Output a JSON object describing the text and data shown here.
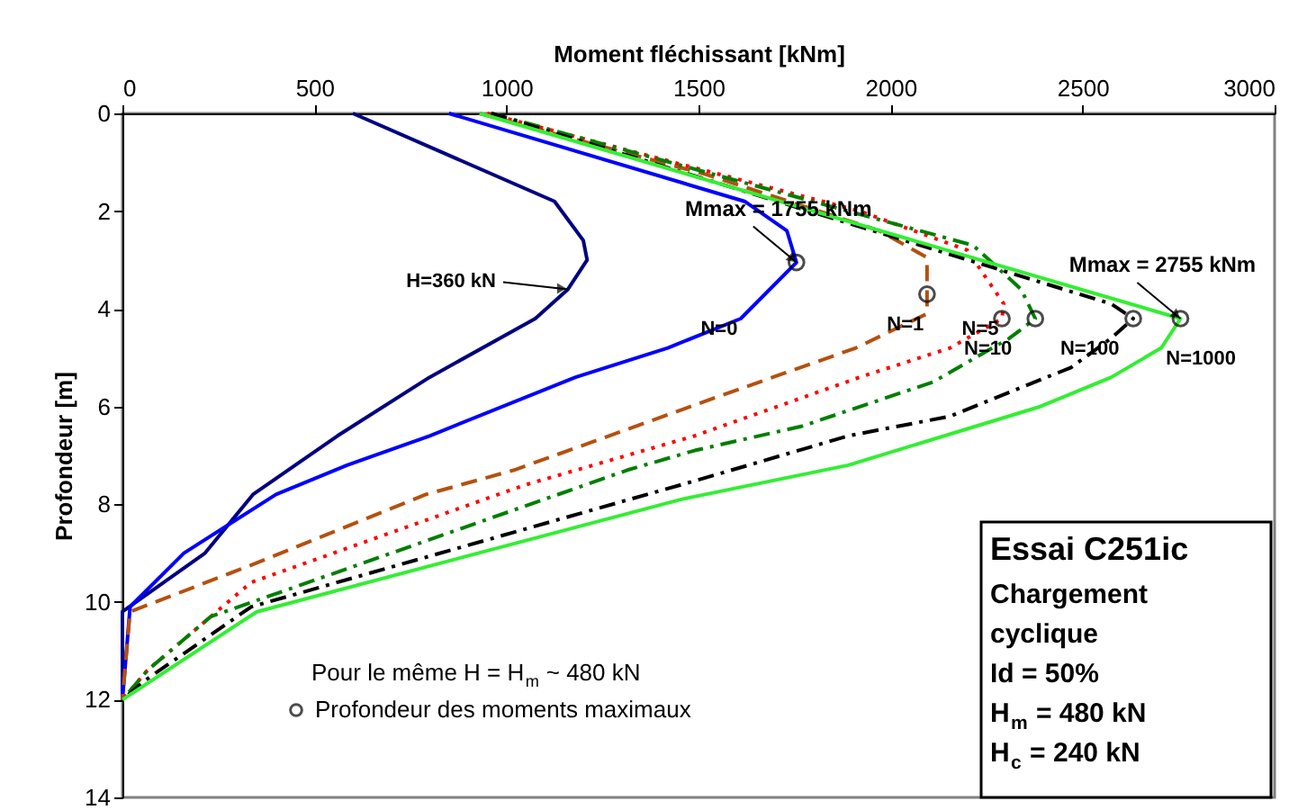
{
  "chart_data": {
    "type": "line",
    "xlabel": "Moment fléchissant [kNm]",
    "ylabel": "Profondeur [m]",
    "xlim": [
      0,
      3000
    ],
    "xticks": [
      0,
      500,
      1000,
      1500,
      2000,
      2500,
      3000
    ],
    "ylim": [
      14,
      0
    ],
    "yticks": [
      0,
      2,
      4,
      6,
      8,
      10,
      12,
      14
    ],
    "grid": false,
    "legend": "bottom",
    "legend_title": "Pour le même H = H$_{m}$ ~ 480 kN",
    "series": [
      {
        "name": "H=360 kN",
        "color": "#000080",
        "line_style": "solid",
        "marker": "none",
        "x": [
          600,
          1125,
          1200,
          1210,
          1160,
          1075,
          800,
          560,
          340,
          215,
          0,
          0
        ],
        "values": [
          0,
          1.8,
          2.6,
          3.0,
          3.6,
          4.2,
          5.4,
          6.6,
          7.8,
          9.0,
          10.2,
          12
        ]
      },
      {
        "name": "N=0",
        "color": "#0000ff",
        "line_style": "solid",
        "marker": "none",
        "x": [
          850,
          1620,
          1730,
          1755,
          1610,
          1420,
          1180,
          800,
          585,
          400,
          160,
          20,
          0
        ],
        "values": [
          0,
          1.8,
          2.4,
          3.05,
          4.2,
          4.8,
          5.4,
          6.6,
          7.2,
          7.8,
          9.0,
          10.1,
          12
        ]
      },
      {
        "name": "N=1",
        "color": "#b5500f",
        "line_style": "dashed",
        "marker": "none",
        "x": [
          930,
          1520,
          1970,
          2095,
          2095,
          1910,
          1550,
          1020,
          790,
          350,
          20,
          0
        ],
        "values": [
          0,
          1.25,
          2.4,
          2.95,
          4.1,
          4.8,
          5.8,
          7.3,
          7.8,
          9.2,
          10.2,
          12
        ]
      },
      {
        "name": "N=5",
        "color": "#ff0000",
        "line_style": "dotted",
        "marker": "none",
        "x": [
          950,
          1920,
          2200,
          2295,
          2290,
          2155,
          1920,
          1490,
          1050,
          335,
          65,
          0
        ],
        "values": [
          0,
          2.0,
          2.8,
          3.9,
          4.2,
          4.8,
          5.4,
          6.6,
          7.6,
          9.6,
          11.4,
          12
        ]
      },
      {
        "name": "N=10",
        "color": "#007f00",
        "line_style": "dashdot",
        "marker": "none",
        "x": [
          960,
          2215,
          2340,
          2377,
          2310,
          2110,
          1770,
          1490,
          1315,
          230,
          65,
          0
        ],
        "values": [
          0,
          2.7,
          3.6,
          4.2,
          4.6,
          5.5,
          6.4,
          6.9,
          7.3,
          10.3,
          11.4,
          12
        ]
      },
      {
        "name": "N=100",
        "color": "#000000",
        "line_style": "dashdot",
        "marker": "none",
        "x": [
          960,
          2575,
          2632,
          2575,
          2470,
          2155,
          1890,
          1500,
          335,
          60,
          0
        ],
        "values": [
          0,
          3.9,
          4.2,
          4.6,
          5.2,
          6.2,
          6.6,
          7.5,
          10.1,
          11.6,
          12
        ]
      },
      {
        "name": "N=1000",
        "color": "#33ee33",
        "line_style": "solid",
        "marker": "none",
        "x": [
          930,
          2755,
          2705,
          2575,
          2390,
          1890,
          1455,
          350,
          0
        ],
        "values": [
          0,
          4.2,
          4.8,
          5.4,
          6.0,
          7.2,
          7.9,
          10.2,
          12
        ]
      },
      {
        "name": "Profondeur des moments maximaux",
        "type": "scatter",
        "color": "#000000",
        "marker": "circle",
        "x": [
          1755,
          2095,
          2290,
          2377,
          2632,
          2755
        ],
        "values": [
          3.05,
          3.7,
          4.2,
          4.2,
          4.2,
          4.2
        ]
      }
    ],
    "annotations": [
      {
        "text": "Mmax = 1755 kNm",
        "x": 1755,
        "y": 3.05
      },
      {
        "text": "Mmax = 2755 kNm",
        "x": 2755,
        "y": 4.2
      },
      "Essai C251ic",
      "Chargement",
      "cyclique",
      "Id = 50%",
      "H$_{m}$ = 480 kN",
      "H$_{c}$ = 240 kN"
    ]
  }
}
